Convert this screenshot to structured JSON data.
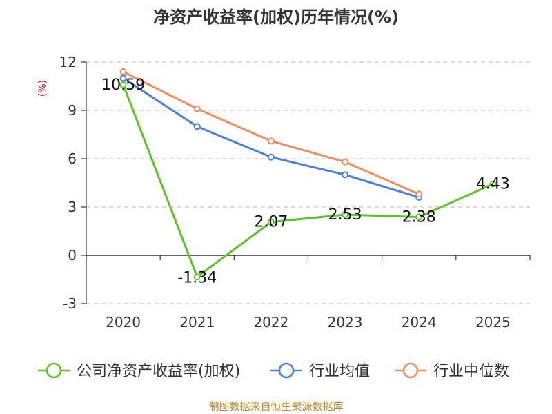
{
  "chart_data": {
    "type": "line",
    "title": "净资产收益率(加权)历年情况(%)",
    "ylabel": "(%)",
    "xlabel": "",
    "categories": [
      "2020",
      "2021",
      "2022",
      "2023",
      "2024",
      "2025"
    ],
    "ylim": [
      -3,
      12
    ],
    "yticks": [
      "12",
      "9",
      "6",
      "3",
      "0",
      "-3"
    ],
    "ytick_values": [
      12,
      9,
      6,
      3,
      0,
      -3
    ],
    "grid": true,
    "series": [
      {
        "name": "公司净资产收益率(加权)",
        "color": "#5cc326",
        "values": [
          10.59,
          -1.34,
          2.07,
          2.53,
          2.38,
          4.43
        ],
        "labels": [
          "10.59",
          "-1.34",
          "2.07",
          "2.53",
          "2.38",
          "4.43"
        ]
      },
      {
        "name": "行业均值",
        "color": "#4a7fdb",
        "values": [
          11.0,
          8.0,
          6.1,
          5.0,
          3.6,
          null
        ]
      },
      {
        "name": "行业中位数",
        "color": "#f58a5a",
        "values": [
          11.4,
          9.1,
          7.1,
          5.8,
          3.8,
          null
        ]
      }
    ],
    "legend_position": "bottom",
    "source": "制图数据来自恒生聚源数据库"
  }
}
